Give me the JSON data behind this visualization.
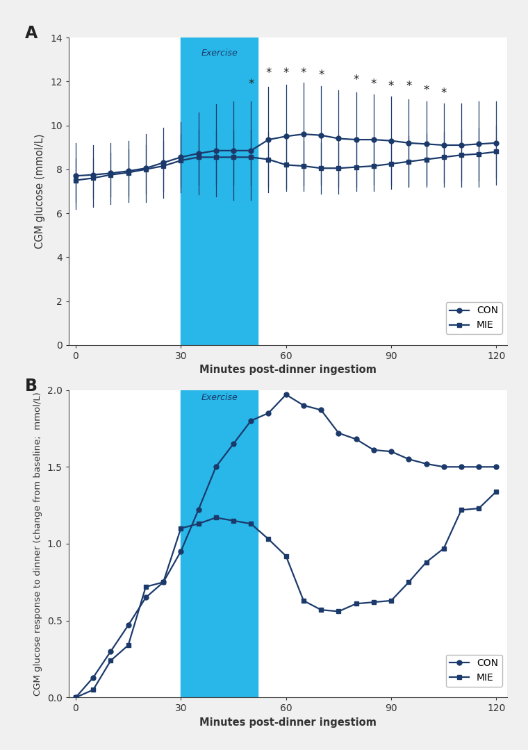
{
  "panel_A": {
    "title": "A",
    "xlabel": "Minutes post-dinner ingestiom",
    "ylabel": "CGM glucose (mmol/L)",
    "exercise_start": 30,
    "exercise_end": 52,
    "exercise_label": "Exercise",
    "ylim": [
      0,
      14
    ],
    "yticks": [
      0,
      2,
      4,
      6,
      8,
      10,
      12,
      14
    ],
    "xlim": [
      -2,
      123
    ],
    "xticks": [
      0,
      30,
      60,
      90,
      120
    ],
    "con_x": [
      0,
      5,
      10,
      15,
      20,
      25,
      30,
      35,
      40,
      45,
      50,
      55,
      60,
      65,
      70,
      75,
      80,
      85,
      90,
      95,
      100,
      105,
      110,
      115,
      120
    ],
    "con_y": [
      7.7,
      7.75,
      7.82,
      7.92,
      8.05,
      8.3,
      8.55,
      8.72,
      8.85,
      8.85,
      8.85,
      9.35,
      9.5,
      9.6,
      9.55,
      9.4,
      9.35,
      9.35,
      9.3,
      9.2,
      9.15,
      9.1,
      9.1,
      9.15,
      9.2
    ],
    "con_err_upper": [
      9.2,
      9.1,
      9.2,
      9.3,
      9.6,
      9.9,
      10.15,
      10.6,
      10.95,
      11.1,
      11.1,
      11.75,
      11.85,
      11.95,
      11.8,
      11.6,
      11.5,
      11.4,
      11.3,
      11.2,
      11.1,
      11.0,
      11.0,
      11.1,
      11.1
    ],
    "con_err_lower": [
      6.2,
      6.3,
      6.4,
      6.5,
      6.5,
      6.7,
      6.95,
      6.85,
      6.75,
      6.6,
      6.6,
      6.95,
      7.15,
      7.25,
      7.3,
      7.2,
      7.2,
      7.3,
      7.3,
      7.2,
      7.2,
      7.2,
      7.2,
      7.2,
      7.3
    ],
    "mie_x": [
      0,
      5,
      10,
      15,
      20,
      25,
      30,
      35,
      40,
      45,
      50,
      55,
      60,
      65,
      70,
      75,
      80,
      85,
      90,
      95,
      100,
      105,
      110,
      115,
      120
    ],
    "mie_y": [
      7.5,
      7.6,
      7.75,
      7.85,
      8.0,
      8.15,
      8.4,
      8.55,
      8.55,
      8.55,
      8.55,
      8.45,
      8.2,
      8.15,
      8.05,
      8.05,
      8.1,
      8.15,
      8.25,
      8.35,
      8.45,
      8.55,
      8.65,
      8.7,
      8.8
    ],
    "mie_err_upper": [
      8.5,
      8.5,
      8.75,
      8.9,
      9.1,
      9.3,
      9.6,
      9.8,
      9.8,
      9.8,
      9.8,
      9.7,
      9.4,
      9.3,
      9.2,
      9.2,
      9.2,
      9.3,
      9.4,
      9.5,
      9.6,
      9.7,
      9.8,
      9.9,
      10.0
    ],
    "mie_err_lower": [
      6.5,
      6.7,
      6.75,
      6.8,
      6.9,
      7.0,
      7.2,
      7.3,
      7.3,
      7.3,
      7.3,
      7.2,
      7.0,
      7.0,
      6.9,
      6.9,
      7.0,
      7.0,
      7.1,
      7.2,
      7.3,
      7.4,
      7.5,
      7.5,
      7.6
    ],
    "star_x": [
      50,
      55,
      60,
      65,
      70,
      80,
      85,
      90,
      95,
      100,
      105
    ],
    "star_y": [
      11.6,
      12.1,
      12.1,
      12.1,
      12.0,
      11.8,
      11.6,
      11.5,
      11.5,
      11.3,
      11.2
    ]
  },
  "panel_B": {
    "title": "B",
    "xlabel": "Minutes post-dinner ingestiom",
    "ylabel": "CGM glucose response to dinner (change from baseline;  mmol/L)",
    "exercise_start": 30,
    "exercise_end": 52,
    "exercise_label": "Exercise",
    "ylim": [
      0.0,
      2.0
    ],
    "yticks": [
      0.0,
      0.5,
      1.0,
      1.5,
      2.0
    ],
    "xlim": [
      -2,
      123
    ],
    "xticks": [
      0,
      30,
      60,
      90,
      120
    ],
    "con_x": [
      0,
      5,
      10,
      15,
      20,
      25,
      30,
      35,
      40,
      45,
      50,
      55,
      60,
      65,
      70,
      75,
      80,
      85,
      90,
      95,
      100,
      105,
      110,
      115,
      120
    ],
    "con_y": [
      0.0,
      0.13,
      0.3,
      0.47,
      0.65,
      0.75,
      0.95,
      1.22,
      1.5,
      1.65,
      1.8,
      1.85,
      1.97,
      1.9,
      1.87,
      1.72,
      1.68,
      1.61,
      1.6,
      1.55,
      1.52,
      1.5,
      1.5,
      1.5,
      1.5
    ],
    "mie_x": [
      0,
      5,
      10,
      15,
      20,
      25,
      30,
      35,
      40,
      45,
      50,
      55,
      60,
      65,
      70,
      75,
      80,
      85,
      90,
      95,
      100,
      105,
      110,
      115,
      120
    ],
    "mie_y": [
      0.0,
      0.05,
      0.24,
      0.34,
      0.72,
      0.75,
      1.1,
      1.13,
      1.17,
      1.15,
      1.13,
      1.03,
      0.92,
      0.63,
      0.57,
      0.56,
      0.61,
      0.62,
      0.63,
      0.75,
      0.88,
      0.97,
      1.22,
      1.23,
      1.34
    ]
  },
  "colors": {
    "con": "#1b3a6b",
    "mie": "#1b3a6b",
    "exercise_box": "#29b6e8",
    "exercise_text": "#1b3a6b",
    "fig_bg": "#f0f0f0",
    "plot_bg": "#ffffff"
  },
  "line_styles": {
    "con_marker": "o",
    "mie_marker": "s",
    "linewidth": 1.6,
    "markersize": 5,
    "err_linewidth": 0.9
  }
}
